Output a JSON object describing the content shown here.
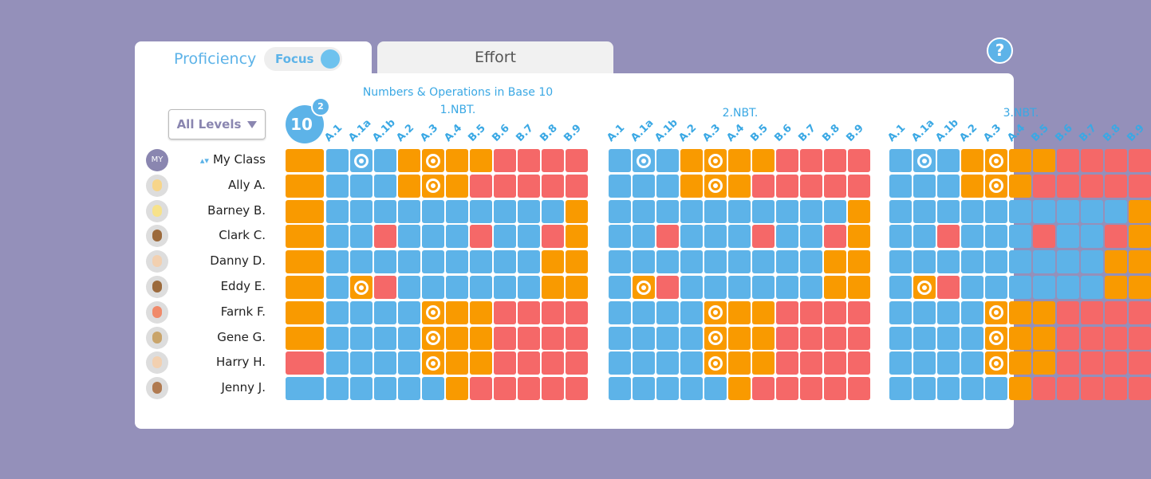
{
  "tabs": {
    "proficiency": "Proficiency",
    "focus_toggle": "Focus",
    "focus_on": true,
    "effort": "Effort"
  },
  "help_label": "?",
  "filter": {
    "selected": "All Levels"
  },
  "badge": {
    "main": "10",
    "sup": "2"
  },
  "colors": {
    "background": "#9490BA",
    "mastered": "#5DB3E8",
    "developing": "#F99A00",
    "struggling": "#F56868"
  },
  "rows": [
    {
      "name": "My Class",
      "avatar": "MY"
    },
    {
      "name": "Ally A.",
      "face": "#F7D58A"
    },
    {
      "name": "Barney B.",
      "face": "#F7E28A"
    },
    {
      "name": "Clark C.",
      "face": "#9C6A3C"
    },
    {
      "name": "Danny D.",
      "face": "#F2D0B0"
    },
    {
      "name": "Eddy E.",
      "face": "#9C6A3C"
    },
    {
      "name": "Farnk F.",
      "face": "#F08A6A"
    },
    {
      "name": "Gene G.",
      "face": "#C9A46A"
    },
    {
      "name": "Harry H.",
      "face": "#F2D0B0"
    },
    {
      "name": "Jenny J.",
      "face": "#B07A50"
    }
  ],
  "blocks": [
    {
      "title": "Numbers & Operations in Base 10",
      "code": "1.NBT.",
      "summary": true
    },
    {
      "title": "",
      "code": "2.NBT.",
      "summary": false
    },
    {
      "title": "",
      "code": "3.NBT.",
      "summary": false
    }
  ],
  "columns": [
    "A.1",
    "A.1a",
    "A.1b",
    "A.2",
    "A.3",
    "A.4",
    "B.5",
    "B.6",
    "B.7",
    "B.8",
    "B.9"
  ],
  "summary": [
    "O",
    "O",
    "O",
    "O",
    "O",
    "O",
    "O",
    "O",
    "R",
    "B"
  ],
  "grid": [
    [
      "B",
      "B*",
      "B",
      "O",
      "O*",
      "O",
      "O",
      "R",
      "R",
      "R",
      "R"
    ],
    [
      "B",
      "B",
      "B",
      "O",
      "O*",
      "O",
      "R",
      "R",
      "R",
      "R",
      "R"
    ],
    [
      "B",
      "B",
      "B",
      "B",
      "B",
      "B",
      "B",
      "B",
      "B",
      "B",
      "O"
    ],
    [
      "B",
      "B",
      "R",
      "B",
      "B",
      "B",
      "R",
      "B",
      "B",
      "R",
      "O"
    ],
    [
      "B",
      "B",
      "B",
      "B",
      "B",
      "B",
      "B",
      "B",
      "B",
      "O",
      "O"
    ],
    [
      "B",
      "O*",
      "R",
      "B",
      "B",
      "B",
      "B",
      "B",
      "B",
      "O",
      "O"
    ],
    [
      "B",
      "B",
      "B",
      "B",
      "O*",
      "O",
      "O",
      "R",
      "R",
      "R",
      "R"
    ],
    [
      "B",
      "B",
      "B",
      "B",
      "O*",
      "O",
      "O",
      "R",
      "R",
      "R",
      "R"
    ],
    [
      "B",
      "B",
      "B",
      "B",
      "O*",
      "O",
      "O",
      "R",
      "R",
      "R",
      "R"
    ],
    [
      "B",
      "B",
      "B",
      "B",
      "B",
      "O",
      "R",
      "R",
      "R",
      "R",
      "R"
    ]
  ]
}
